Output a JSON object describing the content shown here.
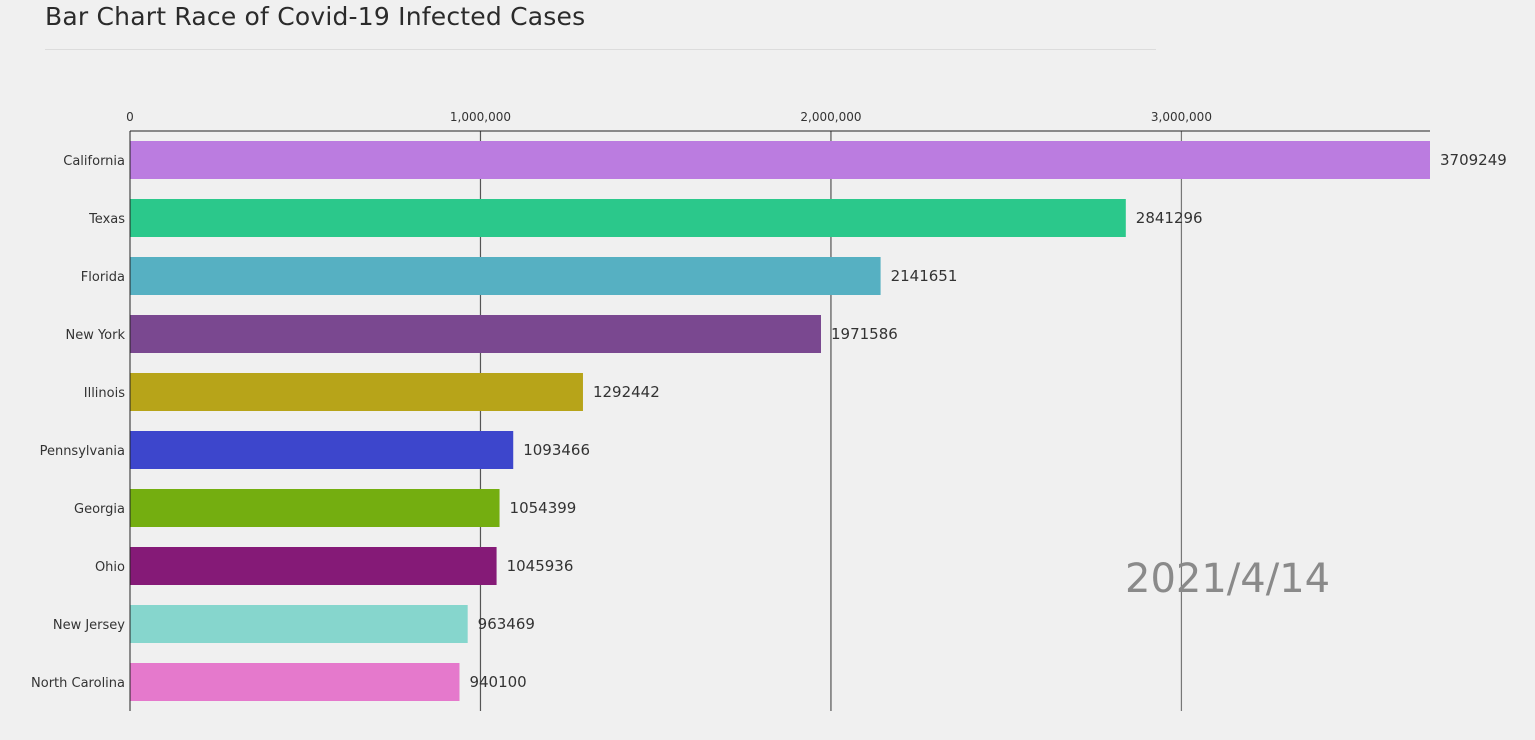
{
  "title": "Bar Chart Race of Covid-19 Infected Cases",
  "chart_data": {
    "type": "bar",
    "orientation": "horizontal",
    "title": "Bar Chart Race of Covid-19 Infected Cases",
    "date": "2021/4/14",
    "xlim": [
      0,
      3709249
    ],
    "xticks": [
      0,
      1000000,
      2000000,
      3000000
    ],
    "xtick_labels": [
      "0",
      "1,000,000",
      "2,000,000",
      "3,000,000"
    ],
    "grid": true,
    "categories": [
      "California",
      "Texas",
      "Florida",
      "New York",
      "Illinois",
      "Pennsylvania",
      "Georgia",
      "Ohio",
      "New Jersey",
      "North Carolina"
    ],
    "values": [
      3709249,
      2841296,
      2141651,
      1971586,
      1292442,
      1093466,
      1054399,
      1045936,
      963469,
      940100
    ],
    "value_labels": [
      "3709249",
      "2841296",
      "2141651",
      "1971586",
      "1292442",
      "1093466",
      "1054399",
      "1045936",
      "963469",
      "940100"
    ],
    "colors": [
      "#bb7ce0",
      "#2bc88b",
      "#56b0c2",
      "#7a4890",
      "#b7a419",
      "#3d46cc",
      "#74ae10",
      "#851a77",
      "#86d6cd",
      "#e579cc"
    ]
  }
}
